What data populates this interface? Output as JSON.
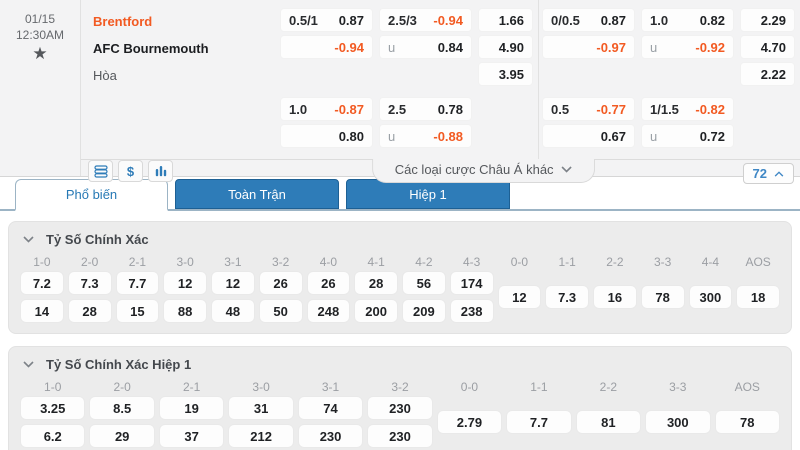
{
  "match": {
    "date": "01/15",
    "time": "12:30AM",
    "home": "Brentford",
    "away": "AFC Bournemouth",
    "draw_label": "Hòa"
  },
  "asian_odds": [
    {
      "groups": [
        {
          "pairs": [
            [
              [
                "0.5/1",
                "0.87"
              ],
              [
                "",
                "-0.94"
              ]
            ],
            [
              [
                "2.5/3",
                "-0.94"
              ],
              [
                "u",
                "0.84"
              ]
            ]
          ],
          "singles": [
            "1.66",
            "4.90",
            "3.95"
          ]
        },
        {
          "pairs": [
            [
              [
                "0/0.5",
                "0.87"
              ],
              [
                "",
                "-0.97"
              ]
            ],
            [
              [
                "1.0",
                "0.82"
              ],
              [
                "u",
                "-0.92"
              ]
            ]
          ],
          "singles": [
            "2.29",
            "4.70",
            "2.22"
          ]
        }
      ]
    },
    {
      "groups": [
        {
          "pairs": [
            [
              [
                "1.0",
                "-0.87"
              ],
              [
                "",
                "0.80"
              ]
            ],
            [
              [
                "2.5",
                "0.78"
              ],
              [
                "u",
                "-0.88"
              ]
            ]
          ],
          "singles": []
        },
        {
          "pairs": [
            [
              [
                "0.5",
                "-0.77"
              ],
              [
                "",
                "0.67"
              ]
            ],
            [
              [
                "1/1.5",
                "-0.82"
              ],
              [
                "u",
                "0.72"
              ]
            ]
          ],
          "singles": []
        }
      ]
    }
  ],
  "toolbar": {
    "icons": [
      "bet-slip-icon",
      "dollar-icon",
      "statistics-icon"
    ],
    "dropdown_label": "Các loại cược Châu Á khác",
    "market_count": "72"
  },
  "tabs": [
    {
      "label": "Phổ biến",
      "active": true
    },
    {
      "label": "Toàn Trận",
      "active": false
    },
    {
      "label": "Hiệp 1",
      "active": false
    }
  ],
  "score_sections": [
    {
      "title": "Tỷ Số Chính Xác",
      "columns": [
        {
          "score": "1-0",
          "odds": [
            "7.2",
            "14"
          ]
        },
        {
          "score": "2-0",
          "odds": [
            "7.3",
            "28"
          ]
        },
        {
          "score": "2-1",
          "odds": [
            "7.7",
            "15"
          ]
        },
        {
          "score": "3-0",
          "odds": [
            "12",
            "88"
          ]
        },
        {
          "score": "3-1",
          "odds": [
            "12",
            "48"
          ]
        },
        {
          "score": "3-2",
          "odds": [
            "26",
            "50"
          ]
        },
        {
          "score": "4-0",
          "odds": [
            "26",
            "248"
          ]
        },
        {
          "score": "4-1",
          "odds": [
            "28",
            "200"
          ]
        },
        {
          "score": "4-2",
          "odds": [
            "56",
            "209"
          ]
        },
        {
          "score": "4-3",
          "odds": [
            "174",
            "238"
          ]
        },
        {
          "score": "0-0",
          "odds": [
            "12"
          ]
        },
        {
          "score": "1-1",
          "odds": [
            "7.3"
          ]
        },
        {
          "score": "2-2",
          "odds": [
            "16"
          ]
        },
        {
          "score": "3-3",
          "odds": [
            "78"
          ]
        },
        {
          "score": "4-4",
          "odds": [
            "300"
          ]
        },
        {
          "score": "AOS",
          "odds": [
            "18"
          ]
        }
      ]
    },
    {
      "title": "Tỷ Số Chính Xác Hiệp 1",
      "columns": [
        {
          "score": "1-0",
          "odds": [
            "3.25",
            "6.2"
          ]
        },
        {
          "score": "2-0",
          "odds": [
            "8.5",
            "29"
          ]
        },
        {
          "score": "2-1",
          "odds": [
            "19",
            "37"
          ]
        },
        {
          "score": "3-0",
          "odds": [
            "31",
            "212"
          ]
        },
        {
          "score": "3-1",
          "odds": [
            "74",
            "230"
          ]
        },
        {
          "score": "3-2",
          "odds": [
            "230",
            "230"
          ]
        },
        {
          "score": "0-0",
          "odds": [
            "2.79"
          ]
        },
        {
          "score": "1-1",
          "odds": [
            "7.7"
          ]
        },
        {
          "score": "2-2",
          "odds": [
            "81"
          ]
        },
        {
          "score": "3-3",
          "odds": [
            "300"
          ]
        },
        {
          "score": "AOS",
          "odds": [
            "78"
          ]
        }
      ]
    }
  ],
  "colors": {
    "accent_orange": "#f25a22",
    "accent_blue": "#2e7cb8",
    "panel_gray": "#f3f3f4",
    "card_gray": "#ececec"
  }
}
